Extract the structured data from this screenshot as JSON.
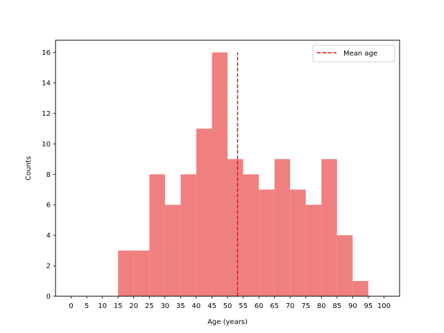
{
  "chart_data": {
    "type": "bar",
    "title": "",
    "xlabel": "Age (years)",
    "ylabel": "Counts",
    "xlim": [
      -5,
      105
    ],
    "ylim": [
      0,
      16.8
    ],
    "bin_edges": [
      15,
      20,
      25,
      30,
      35,
      40,
      45,
      50,
      55,
      60,
      65,
      70,
      75,
      80,
      85,
      90,
      95
    ],
    "values": [
      3,
      3,
      8,
      6,
      8,
      11,
      16,
      9,
      8,
      7,
      9,
      7,
      6,
      9,
      4,
      1
    ],
    "x_ticks": [
      0,
      5,
      10,
      15,
      20,
      25,
      30,
      35,
      40,
      45,
      50,
      55,
      60,
      65,
      70,
      75,
      80,
      85,
      90,
      95,
      100
    ],
    "y_ticks": [
      0,
      2,
      4,
      6,
      8,
      10,
      12,
      14,
      16
    ],
    "bar_color": "#f08080",
    "mean_line": {
      "label": "Mean age",
      "x": 53.2,
      "y_range": [
        0,
        16
      ],
      "color": "#ff0000",
      "style": "dashed"
    },
    "legend": {
      "placement": "upper right",
      "entries": [
        "Mean age"
      ]
    },
    "grid": false
  }
}
